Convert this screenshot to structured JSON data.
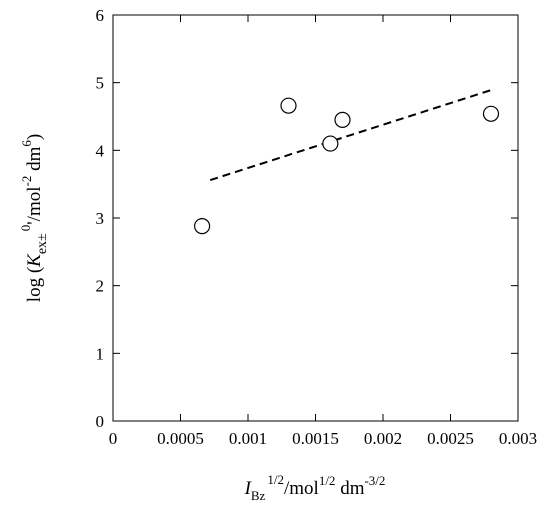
{
  "chart_data": {
    "type": "scatter",
    "title": "",
    "xlim": [
      0,
      0.003
    ],
    "ylim": [
      0,
      6
    ],
    "x_ticks": [
      {
        "value": 0,
        "label": "0"
      },
      {
        "value": 0.0005,
        "label": "0.0005"
      },
      {
        "value": 0.001,
        "label": "0.001"
      },
      {
        "value": 0.0015,
        "label": "0.0015"
      },
      {
        "value": 0.002,
        "label": "0.002"
      },
      {
        "value": 0.0025,
        "label": "0.0025"
      },
      {
        "value": 0.003,
        "label": "0.003"
      }
    ],
    "y_ticks": [
      {
        "value": 0,
        "label": "0"
      },
      {
        "value": 1,
        "label": "1"
      },
      {
        "value": 2,
        "label": "2"
      },
      {
        "value": 3,
        "label": "3"
      },
      {
        "value": 4,
        "label": "4"
      },
      {
        "value": 5,
        "label": "5"
      },
      {
        "value": 6,
        "label": "6"
      }
    ],
    "xlabel": {
      "symbol": "I",
      "symbol_subscript": "Bz",
      "symbol_superscript": "1/2",
      "unit_prefix": "/mol",
      "unit_mol_superscript": "1/2",
      "unit_middle": " dm",
      "unit_dm_superscript": "-3/2"
    },
    "ylabel": {
      "prefix": "log (",
      "symbol": "K",
      "symbol_subscript": "ex±",
      "symbol_superscript": "0",
      "unit_prefix": "'/mol",
      "unit_mol_superscript": "-2",
      "unit_middle": " dm",
      "unit_dm_superscript": "6",
      "suffix": ")"
    },
    "points": [
      {
        "x": 0.00066,
        "y": 2.88
      },
      {
        "x": 0.0013,
        "y": 4.66
      },
      {
        "x": 0.00161,
        "y": 4.1
      },
      {
        "x": 0.0017,
        "y": 4.45
      },
      {
        "x": 0.0028,
        "y": 4.54
      }
    ],
    "fit_line": {
      "style": "dashed",
      "x": [
        0.00072,
        0.0028
      ],
      "y": [
        3.56,
        4.89
      ]
    },
    "grid": false,
    "legend": "none",
    "colors": {
      "axis": "#000000",
      "marker_stroke": "#000000",
      "marker_fill": "#ffffff",
      "fit_line": "#000000"
    }
  }
}
